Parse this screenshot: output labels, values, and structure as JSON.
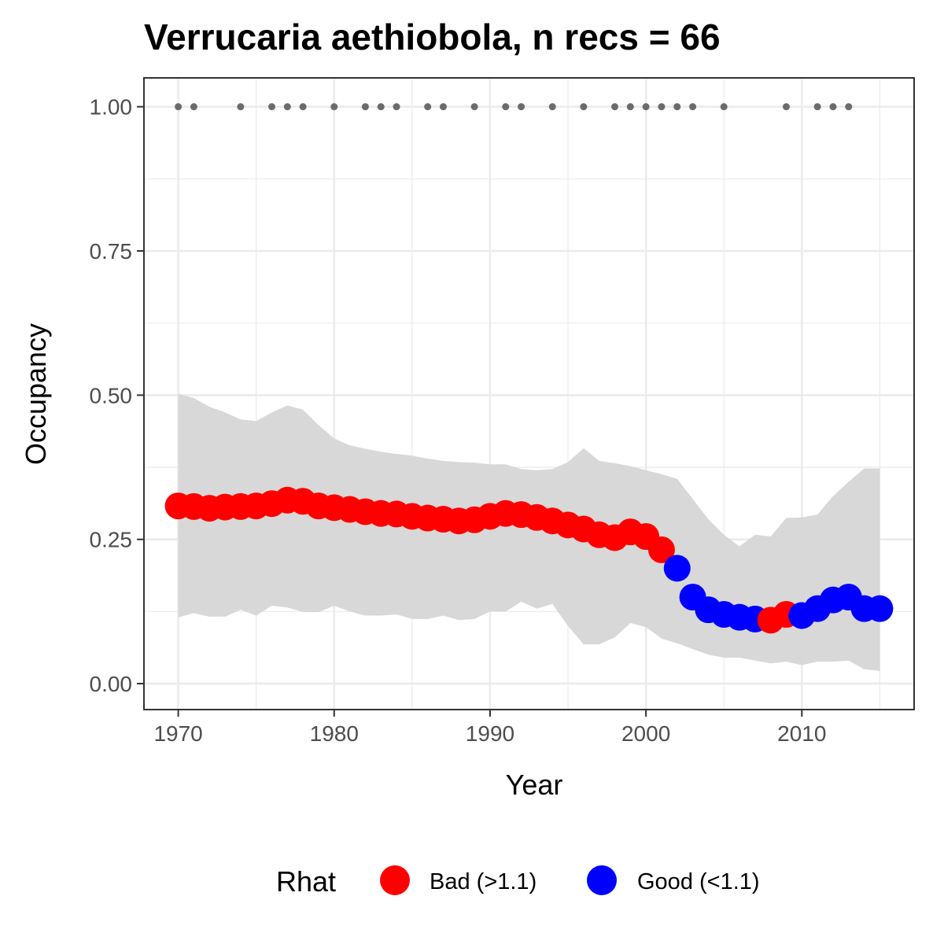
{
  "chart_data": {
    "type": "line",
    "title": "Verrucaria aethiobola, n recs = 66",
    "xlabel": "Year",
    "ylabel": "Occupancy",
    "xlim": [
      1967.8,
      2017.2
    ],
    "ylim": [
      -0.045,
      1.05
    ],
    "x_ticks": [
      1970,
      1980,
      1990,
      2000,
      2010
    ],
    "x_tick_labels": [
      "1970",
      "1980",
      "1990",
      "2000",
      "2010"
    ],
    "y_ticks": [
      0.0,
      0.25,
      0.5,
      0.75,
      1.0
    ],
    "y_tick_labels": [
      "0.00",
      "0.25",
      "0.50",
      "0.75",
      "1.00"
    ],
    "grid": true,
    "legend": {
      "title": "Rhat",
      "position": "bottom",
      "entries": [
        {
          "label": "Bad (>1.1)",
          "color": "#ff0000"
        },
        {
          "label": "Good (<1.1)",
          "color": "#0000ff"
        }
      ]
    },
    "colors": {
      "bad": "#ff0000",
      "good": "#0000ff",
      "ribbon": "#d6d6d6",
      "record_points": "#6b6b6b"
    },
    "series": [
      {
        "years": [
          1970,
          1971,
          1972,
          1973,
          1974,
          1975,
          1976,
          1977,
          1978,
          1979,
          1980,
          1981,
          1982,
          1983,
          1984,
          1985,
          1986,
          1987,
          1988,
          1989,
          1990,
          1991,
          1992,
          1993,
          1994,
          1995,
          1996,
          1997,
          1998,
          1999,
          2000,
          2001,
          2002,
          2003,
          2004,
          2005,
          2006,
          2007,
          2008,
          2009,
          2010,
          2011,
          2012,
          2013,
          2014,
          2015
        ],
        "occupancy": [
          0.308,
          0.307,
          0.304,
          0.306,
          0.307,
          0.308,
          0.312,
          0.318,
          0.316,
          0.308,
          0.305,
          0.302,
          0.298,
          0.295,
          0.294,
          0.29,
          0.287,
          0.285,
          0.282,
          0.284,
          0.29,
          0.295,
          0.293,
          0.288,
          0.282,
          0.275,
          0.268,
          0.258,
          0.253,
          0.263,
          0.255,
          0.232,
          0.2,
          0.15,
          0.128,
          0.12,
          0.115,
          0.112,
          0.11,
          0.12,
          0.118,
          0.13,
          0.145,
          0.15,
          0.13,
          0.13
        ],
        "rhat": [
          "bad",
          "bad",
          "bad",
          "bad",
          "bad",
          "bad",
          "bad",
          "bad",
          "bad",
          "bad",
          "bad",
          "bad",
          "bad",
          "bad",
          "bad",
          "bad",
          "bad",
          "bad",
          "bad",
          "bad",
          "bad",
          "bad",
          "bad",
          "bad",
          "bad",
          "bad",
          "bad",
          "bad",
          "bad",
          "bad",
          "bad",
          "bad",
          "good",
          "good",
          "good",
          "good",
          "good",
          "good",
          "bad",
          "bad",
          "good",
          "good",
          "good",
          "good",
          "good",
          "good"
        ],
        "lower": [
          0.115,
          0.122,
          0.116,
          0.116,
          0.128,
          0.118,
          0.135,
          0.132,
          0.124,
          0.124,
          0.135,
          0.125,
          0.118,
          0.118,
          0.12,
          0.112,
          0.112,
          0.118,
          0.11,
          0.112,
          0.125,
          0.125,
          0.142,
          0.13,
          0.138,
          0.1,
          0.068,
          0.068,
          0.08,
          0.105,
          0.098,
          0.078,
          0.07,
          0.06,
          0.05,
          0.045,
          0.045,
          0.04,
          0.035,
          0.038,
          0.032,
          0.038,
          0.038,
          0.04,
          0.025,
          0.022
        ],
        "upper": [
          0.502,
          0.495,
          0.48,
          0.47,
          0.458,
          0.455,
          0.47,
          0.482,
          0.475,
          0.448,
          0.425,
          0.413,
          0.407,
          0.402,
          0.398,
          0.395,
          0.39,
          0.386,
          0.384,
          0.383,
          0.38,
          0.38,
          0.372,
          0.37,
          0.372,
          0.384,
          0.408,
          0.386,
          0.382,
          0.377,
          0.37,
          0.363,
          0.355,
          0.32,
          0.285,
          0.258,
          0.238,
          0.258,
          0.255,
          0.287,
          0.288,
          0.293,
          0.325,
          0.35,
          0.373,
          0.373
        ]
      }
    ],
    "record_years": [
      1970,
      1971,
      1974,
      1976,
      1977,
      1978,
      1980,
      1982,
      1983,
      1984,
      1986,
      1987,
      1989,
      1991,
      1992,
      1994,
      1996,
      1998,
      1999,
      2000,
      2001,
      2002,
      2003,
      2005,
      2009,
      2011,
      2012,
      2013
    ],
    "record_value": 1.0
  }
}
